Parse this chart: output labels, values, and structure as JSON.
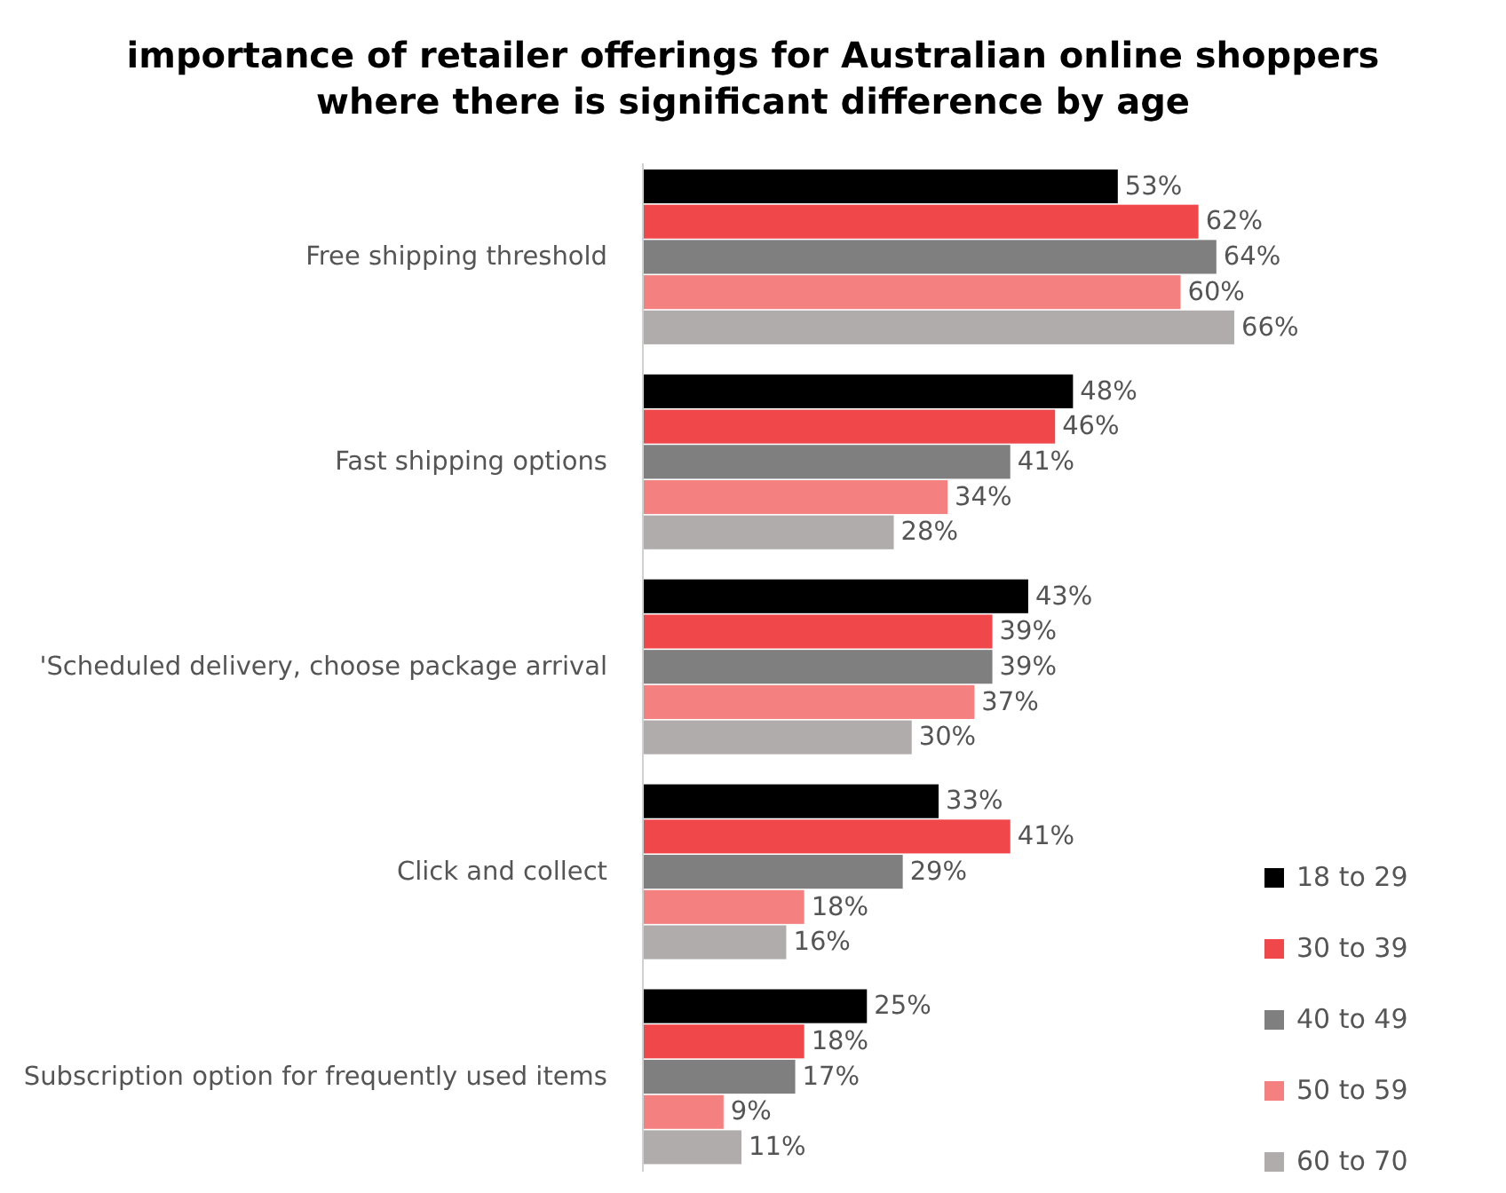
{
  "chart_data": {
    "type": "bar",
    "orientation": "horizontal",
    "title": "importance of retailer offerings for Australian online shoppers\nwhere there is significant difference by age",
    "categories": [
      "Free shipping threshold",
      "Fast shipping options",
      "'Scheduled delivery, choose package arrival",
      "Click and collect",
      "Subscription option for frequently used items"
    ],
    "series": [
      {
        "name": "18 to 29",
        "color": "#000000",
        "values": [
          53,
          48,
          43,
          33,
          25
        ],
        "value_labels": [
          "53%",
          "48%",
          "43%",
          "33%",
          "25%"
        ]
      },
      {
        "name": "30 to 39",
        "color": "#f0474a",
        "values": [
          62,
          46,
          39,
          41,
          18
        ],
        "value_labels": [
          "62%",
          "46%",
          "39%",
          "41%",
          "18%"
        ]
      },
      {
        "name": "40 to 49",
        "color": "#7f7f7f",
        "values": [
          64,
          41,
          39,
          29,
          17
        ],
        "value_labels": [
          "64%",
          "41%",
          "39%",
          "29%",
          "17%"
        ]
      },
      {
        "name": "50 to 59",
        "color": "#f4807f",
        "values": [
          60,
          34,
          37,
          18,
          9
        ],
        "value_labels": [
          "60%",
          "34%",
          "37%",
          "18%",
          "9%"
        ]
      },
      {
        "name": "60 to 70",
        "color": "#b0acab",
        "values": [
          66,
          28,
          30,
          16,
          11
        ],
        "value_labels": [
          "66%",
          "28%",
          "30%",
          "16%",
          "11%"
        ]
      }
    ],
    "legend": "bottom right"
  }
}
